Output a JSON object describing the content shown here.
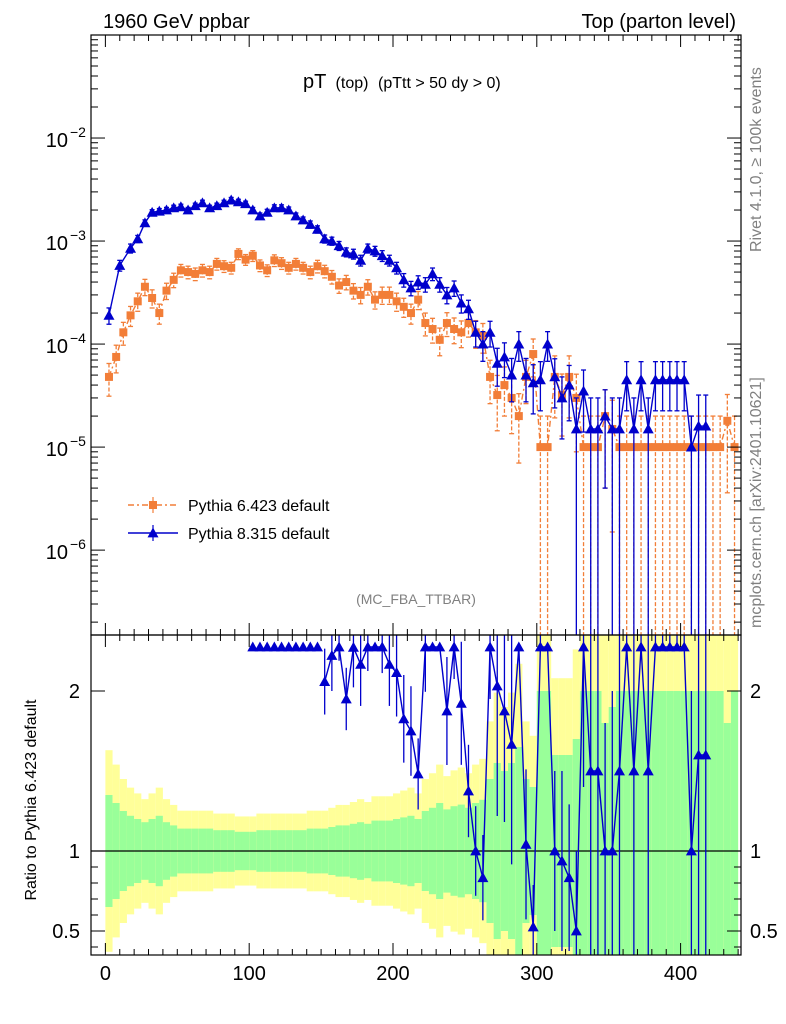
{
  "header": {
    "left": "1960 GeV ppbar",
    "right": "Top (parton level)"
  },
  "side_labels": {
    "rivet": "Rivet 4.1.0, ≥ 100k events",
    "mcplots": "mcplots.cern.ch [arXiv:2401.10621]"
  },
  "chart_data": [
    {
      "panel": "main",
      "type": "line",
      "title_main": "pT",
      "title_sub": "(top)",
      "title_cut": "(pTtt > 50 dy > 0)",
      "watermark": "(MC_FBA_TTBAR)",
      "yscale": "log",
      "ylim": [
        1.5e-07,
        0.1
      ],
      "xlim": [
        -10,
        442
      ],
      "y_tick_labels": [
        {
          "base": "10",
          "exp": "−2",
          "value": 0.01
        },
        {
          "base": "10",
          "exp": "−3",
          "value": 0.001
        },
        {
          "base": "10",
          "exp": "−4",
          "value": 0.0001
        },
        {
          "base": "10",
          "exp": "−5",
          "value": 1e-05
        },
        {
          "base": "10",
          "exp": "−6",
          "value": 1e-06
        }
      ],
      "legend": [
        "Pythia 6.423 default",
        "Pythia 8.315 default"
      ],
      "series": [
        {
          "name": "Pythia 6.423 default",
          "color": "#f27e38",
          "marker": "square",
          "x": [
            2.5,
            7.5,
            12.5,
            17.5,
            22.5,
            27.5,
            32.5,
            37.5,
            42.5,
            47.5,
            52.5,
            57.5,
            62.5,
            67.5,
            72.5,
            77.5,
            82.5,
            87.5,
            92.5,
            97.5,
            102.5,
            107.5,
            112.5,
            117.5,
            122.5,
            127.5,
            132.5,
            137.5,
            142.5,
            147.5,
            152.5,
            157.5,
            162.5,
            167.5,
            172.5,
            177.5,
            182.5,
            187.5,
            192.5,
            197.5,
            202.5,
            207.5,
            212.5,
            217.5,
            222.5,
            227.5,
            232.5,
            237.5,
            242.5,
            247.5,
            252.5,
            257.5,
            262.5,
            267.5,
            272.5,
            277.5,
            282.5,
            287.5,
            292.5,
            297.5,
            302.5,
            307.5,
            312.5,
            317.5,
            322.5,
            327.5,
            332.5,
            337.5,
            342.5,
            347.5,
            352.5,
            357.5,
            362.5,
            367.5,
            372.5,
            377.5,
            382.5,
            387.5,
            392.5,
            397.5,
            402.5,
            407.5,
            412.5,
            417.5,
            422.5,
            427.5,
            432.5,
            437.5
          ],
          "y": [
            4.8e-05,
            7.5e-05,
            0.00013,
            0.00019,
            0.00026,
            0.00036,
            0.00028,
            0.0002,
            0.00033,
            0.00042,
            0.00052,
            0.0005,
            0.00048,
            0.00052,
            0.0005,
            0.0006,
            0.00057,
            0.00055,
            0.00075,
            0.00066,
            0.00072,
            0.00058,
            0.00052,
            0.00065,
            0.00061,
            0.00055,
            0.0006,
            0.00055,
            0.0005,
            0.00057,
            0.00051,
            0.00045,
            0.00037,
            0.0004,
            0.00033,
            0.0003,
            0.00036,
            0.00027,
            0.0003,
            0.0003,
            0.00026,
            0.00023,
            0.0002,
            0.00027,
            0.00016,
            0.00014,
            0.00011,
            0.00016,
            0.00014,
            0.00013,
            0.00016,
            0.00013,
            0.00012,
            4.8e-05,
            3.2e-05,
            4e-05,
            3e-05,
            2e-05,
            4.8e-05,
            8e-05,
            1e-05,
            1e-05,
            4.8e-05,
            3.2e-05,
            4.8e-05,
            3e-05,
            1e-05,
            1e-05,
            1e-05,
            2e-05,
            1.5e-05,
            1e-05,
            1e-05,
            1e-05,
            1e-05,
            1e-05,
            1e-05,
            1e-05,
            1e-05,
            1e-05,
            1e-05,
            1e-05,
            1e-05,
            1e-05,
            1e-05,
            1e-05,
            1.8e-05,
            1e-05
          ],
          "rel_err": [
            0.35,
            0.3,
            0.25,
            0.22,
            0.2,
            0.18,
            0.2,
            0.22,
            0.18,
            0.16,
            0.14,
            0.14,
            0.14,
            0.14,
            0.14,
            0.13,
            0.13,
            0.13,
            0.12,
            0.12,
            0.12,
            0.13,
            0.13,
            0.13,
            0.13,
            0.13,
            0.13,
            0.13,
            0.14,
            0.14,
            0.14,
            0.15,
            0.16,
            0.16,
            0.17,
            0.18,
            0.17,
            0.19,
            0.19,
            0.19,
            0.2,
            0.21,
            0.22,
            0.2,
            0.25,
            0.27,
            0.3,
            0.26,
            0.28,
            0.29,
            0.27,
            0.3,
            0.32,
            0.45,
            0.55,
            0.5,
            0.55,
            0.65,
            0.45,
            0.4,
            1,
            1,
            0.6,
            0.6,
            0.6,
            0.7,
            1,
            1,
            1,
            0.8,
            0.9,
            1,
            1,
            1,
            1,
            1,
            1,
            1,
            1,
            1,
            1,
            1,
            1,
            1,
            1,
            1,
            0.8,
            1
          ]
        },
        {
          "name": "Pythia 8.315 default",
          "color": "#0000cc",
          "marker": "triangle",
          "x": [
            2.5,
            10,
            17.5,
            22.5,
            27.5,
            32.5,
            37.5,
            42.5,
            47.5,
            52.5,
            57.5,
            62.5,
            67.5,
            72.5,
            77.5,
            82.5,
            87.5,
            92.5,
            97.5,
            102.5,
            107.5,
            112.5,
            117.5,
            122.5,
            127.5,
            132.5,
            137.5,
            142.5,
            147.5,
            152.5,
            157.5,
            162.5,
            167.5,
            172.5,
            177.5,
            182.5,
            187.5,
            192.5,
            197.5,
            202.5,
            207.5,
            212.5,
            217.5,
            222.5,
            227.5,
            232.5,
            237.5,
            242.5,
            247.5,
            252.5,
            257.5,
            262.5,
            267.5,
            272.5,
            277.5,
            282.5,
            287.5,
            292.5,
            297.5,
            302.5,
            307.5,
            312.5,
            317.5,
            322.5,
            327.5,
            332.5,
            337.5,
            342.5,
            347.5,
            352.5,
            357.5,
            362.5,
            367.5,
            372.5,
            377.5,
            382.5,
            387.5,
            392.5,
            397.5,
            402.5,
            407.5,
            412.5,
            417.5
          ],
          "y": [
            0.00019,
            0.00058,
            0.00085,
            0.00105,
            0.0015,
            0.0019,
            0.00195,
            0.002,
            0.0021,
            0.00215,
            0.002,
            0.0022,
            0.00235,
            0.0021,
            0.0022,
            0.00235,
            0.0025,
            0.0024,
            0.0023,
            0.002,
            0.00175,
            0.0019,
            0.0021,
            0.0021,
            0.002,
            0.00175,
            0.0016,
            0.00145,
            0.0013,
            0.00105,
            0.001,
            0.0009,
            0.00078,
            0.00075,
            0.00065,
            0.00085,
            0.0008,
            0.00072,
            0.00065,
            0.00055,
            0.00042,
            0.00035,
            0.0004,
            0.00038,
            0.00048,
            0.00038,
            0.0003,
            0.00035,
            0.00025,
            0.00022,
            0.00013,
            0.0001,
            0.00013,
            6.5e-05,
            7.5e-05,
            5e-05,
            0.0001,
            5e-05,
            4.2e-05,
            4.5e-05,
            0.0001,
            4.8e-05,
            3e-05,
            4e-05,
            1.5e-05,
            3.5e-05,
            1.5e-05,
            1.5e-05,
            2e-05,
            1.5e-05,
            1.5e-05,
            4.5e-05,
            1.5e-05,
            4.5e-05,
            1.5e-05,
            4.5e-05,
            4.5e-05,
            4.5e-05,
            4.5e-05,
            4.5e-05,
            1e-05,
            1.6e-05,
            1.6e-05
          ],
          "rel_err": [
            0.18,
            0.12,
            0.1,
            0.08,
            0.07,
            0.06,
            0.06,
            0.06,
            0.06,
            0.06,
            0.06,
            0.06,
            0.06,
            0.06,
            0.06,
            0.06,
            0.06,
            0.06,
            0.06,
            0.06,
            0.07,
            0.07,
            0.07,
            0.07,
            0.07,
            0.07,
            0.07,
            0.08,
            0.08,
            0.09,
            0.09,
            0.1,
            0.1,
            0.11,
            0.12,
            0.1,
            0.11,
            0.12,
            0.12,
            0.13,
            0.15,
            0.16,
            0.15,
            0.16,
            0.14,
            0.16,
            0.18,
            0.17,
            0.2,
            0.21,
            0.28,
            0.32,
            0.28,
            0.4,
            0.37,
            0.45,
            0.32,
            0.45,
            0.5,
            0.5,
            0.32,
            0.5,
            0.6,
            0.55,
            1,
            0.6,
            1,
            1,
            0.8,
            1,
            1,
            0.5,
            1,
            0.5,
            1,
            0.5,
            0.5,
            0.5,
            0.5,
            0.5,
            1,
            1,
            1
          ]
        }
      ]
    },
    {
      "panel": "ratio",
      "type": "line",
      "ylabel": "Ratio to Pythia 6.423 default",
      "ylim": [
        0.35,
        2.35
      ],
      "xlim": [
        -10,
        442
      ],
      "x_ticks": [
        0,
        100,
        200,
        300,
        400
      ],
      "x_tick_labels": [
        "0",
        "100",
        "200",
        "300",
        "400"
      ],
      "y_ticks": [
        0.5,
        1,
        2
      ],
      "y_tick_labels": [
        "0.5",
        "1",
        "2"
      ],
      "reference": 1,
      "band_colors": {
        "inner": "#99ff99",
        "outer": "#ffff99"
      }
    }
  ]
}
